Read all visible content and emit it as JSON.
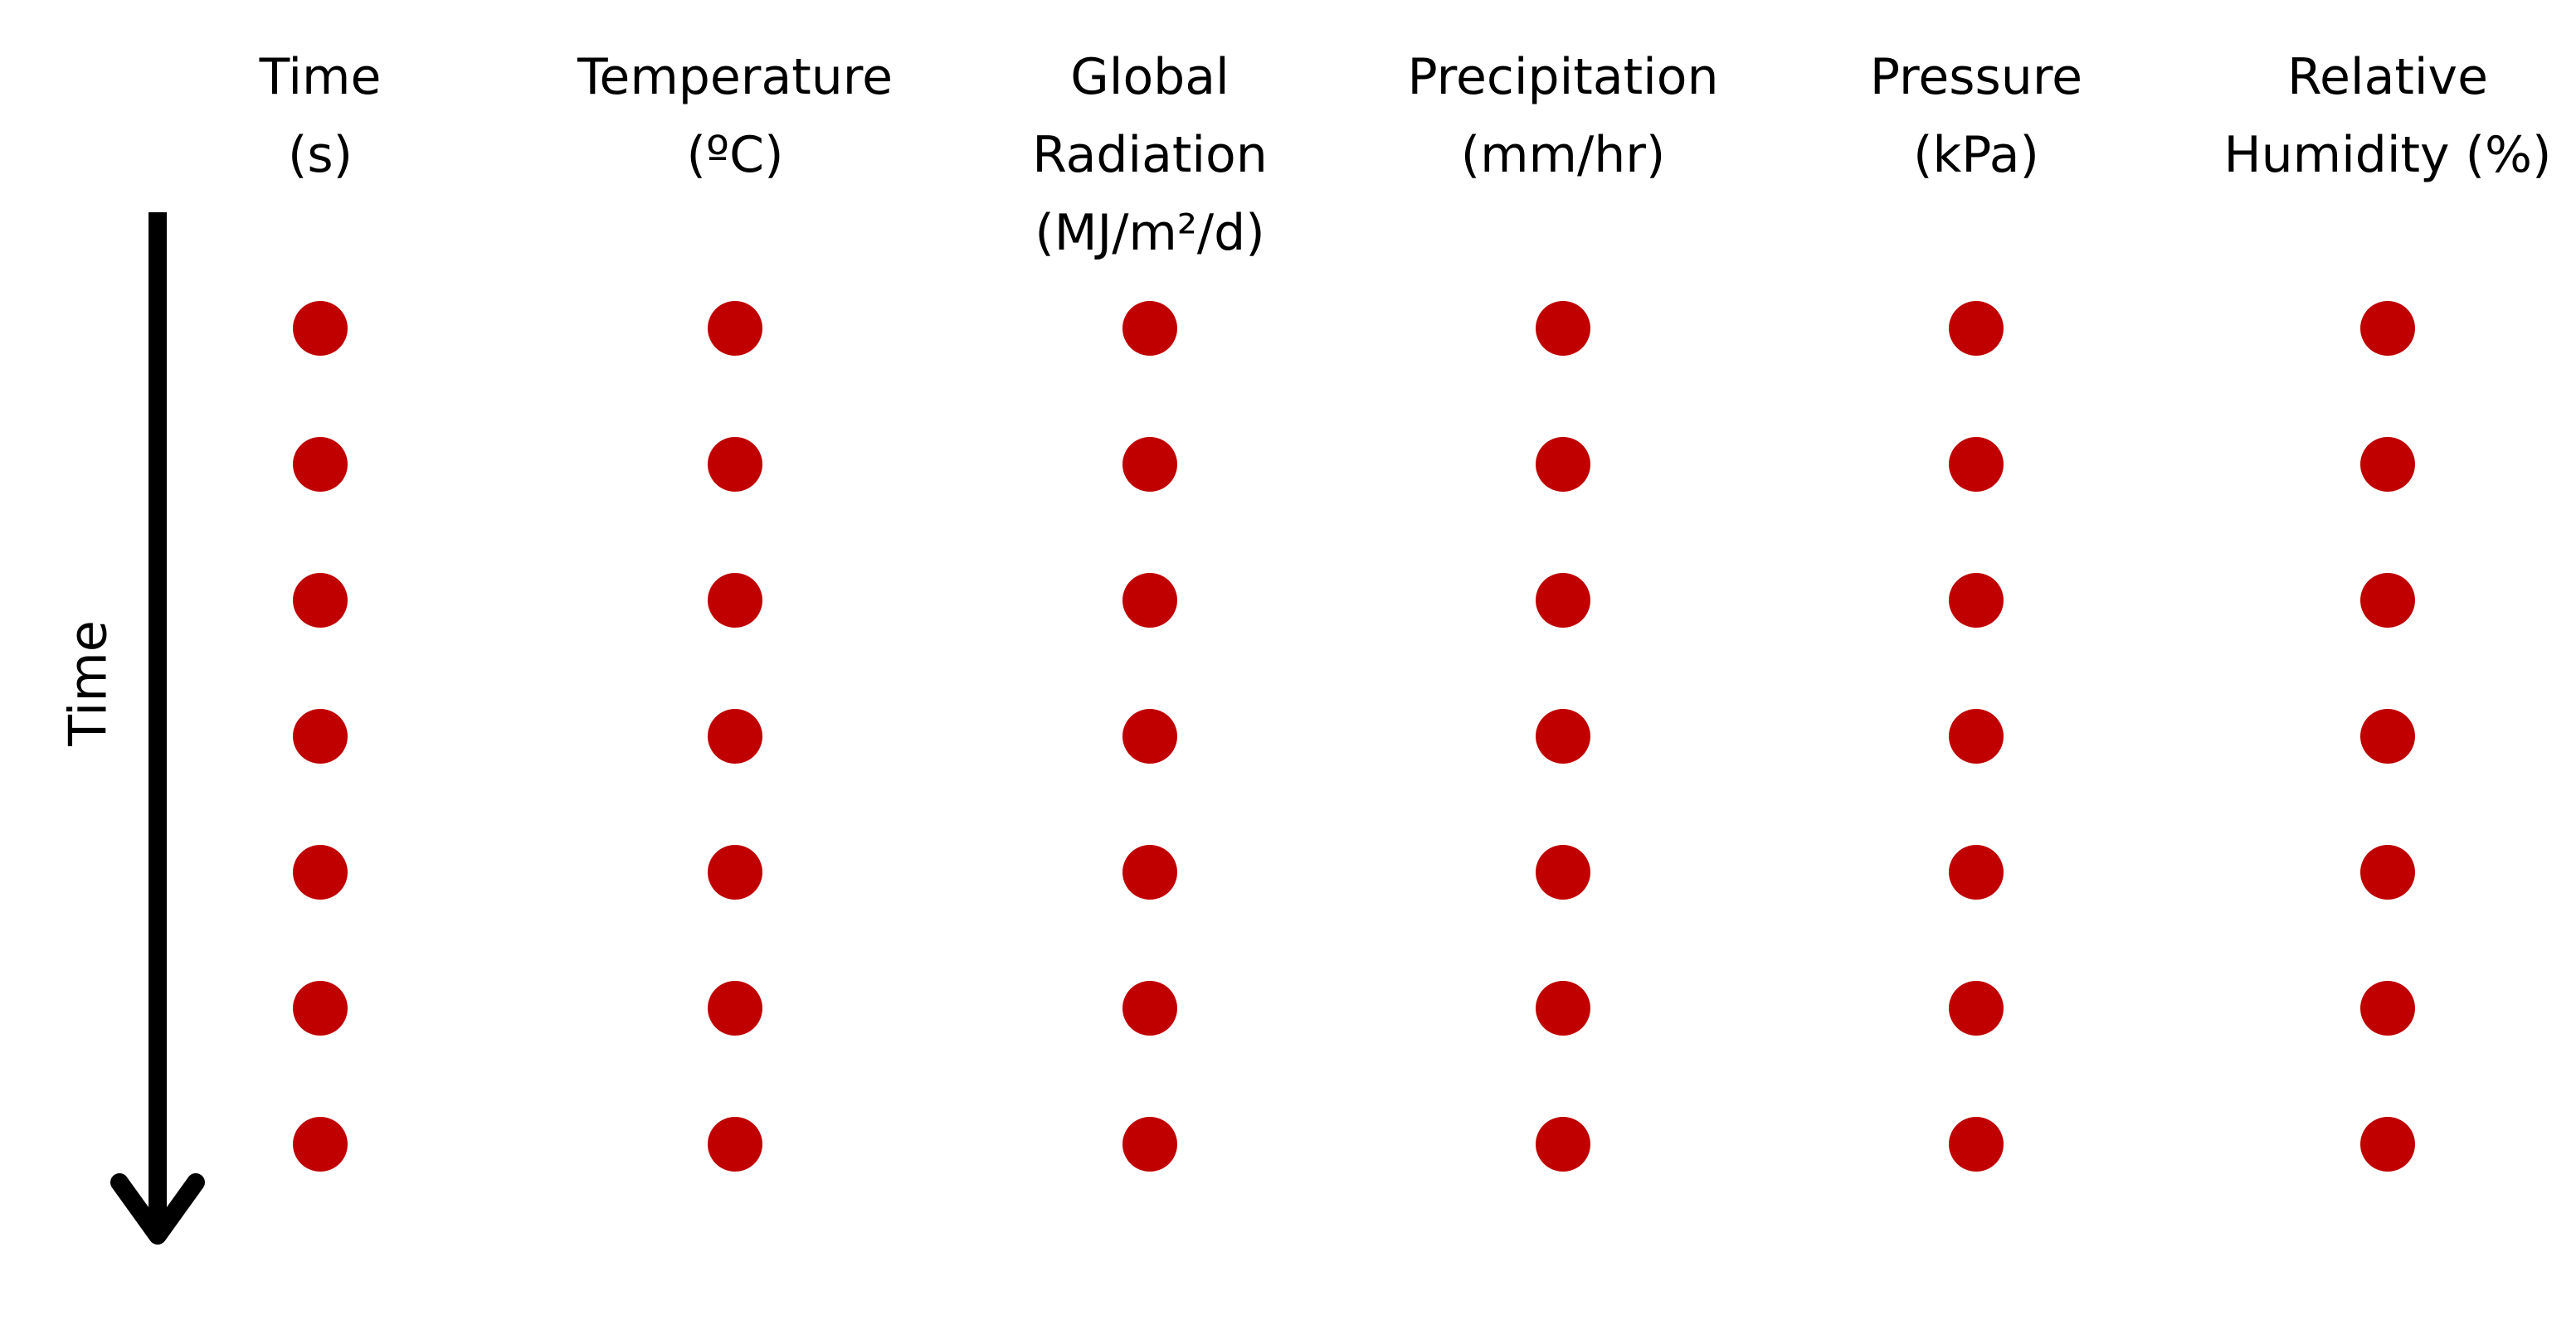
{
  "axis": {
    "label": "Time"
  },
  "columns": [
    {
      "lines": [
        "Time",
        "(s)"
      ]
    },
    {
      "lines": [
        "Temperature",
        "(ºC)"
      ]
    },
    {
      "lines": [
        "Global",
        "Radiation",
        "(MJ/m²/d)"
      ]
    },
    {
      "lines": [
        "Precipitation",
        "(mm/hr)"
      ]
    },
    {
      "lines": [
        "Pressure",
        "(kPa)"
      ]
    },
    {
      "lines": [
        "Relative",
        "Humidity (%)"
      ]
    }
  ],
  "rows_per_column": 7,
  "colors": {
    "dot": "#c00000",
    "arrow": "#000000"
  },
  "icons": {
    "arrow": "down-arrow-icon",
    "dot": "data-point-dot"
  }
}
